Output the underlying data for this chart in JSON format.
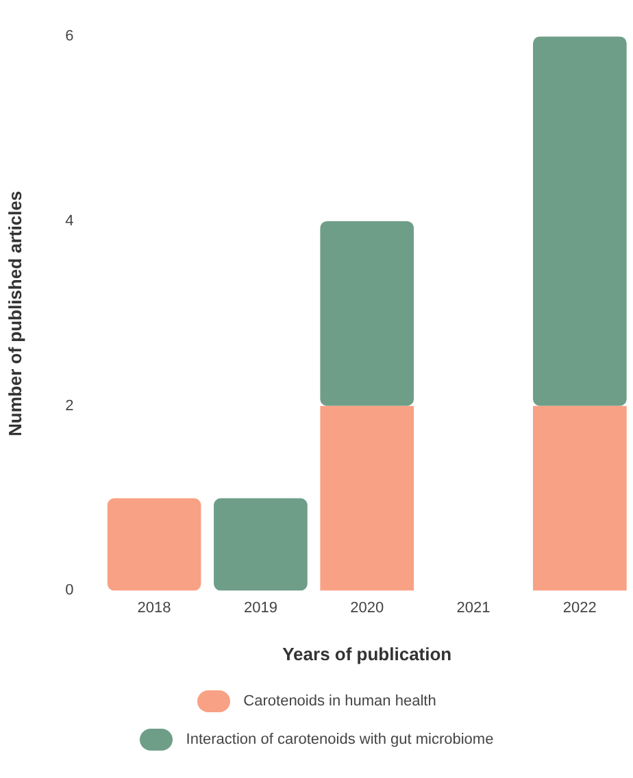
{
  "chart_data": {
    "type": "bar",
    "stacked": true,
    "xlabel": "Years of publication",
    "ylabel": "Number of published articles",
    "categories": [
      "2018",
      "2019",
      "2020",
      "2021",
      "2022"
    ],
    "ylim": [
      0,
      6
    ],
    "yticks": [
      0,
      2,
      4,
      6
    ],
    "grid": false,
    "legend": "bottom",
    "series": [
      {
        "name": "Carotenoids in human health",
        "color": "#f9a184",
        "values": [
          1,
          0,
          2,
          0,
          2
        ]
      },
      {
        "name": "Interaction of carotenoids with gut microbiome",
        "color": "#6f9e88",
        "values": [
          0,
          1,
          2,
          0,
          4
        ]
      }
    ]
  }
}
